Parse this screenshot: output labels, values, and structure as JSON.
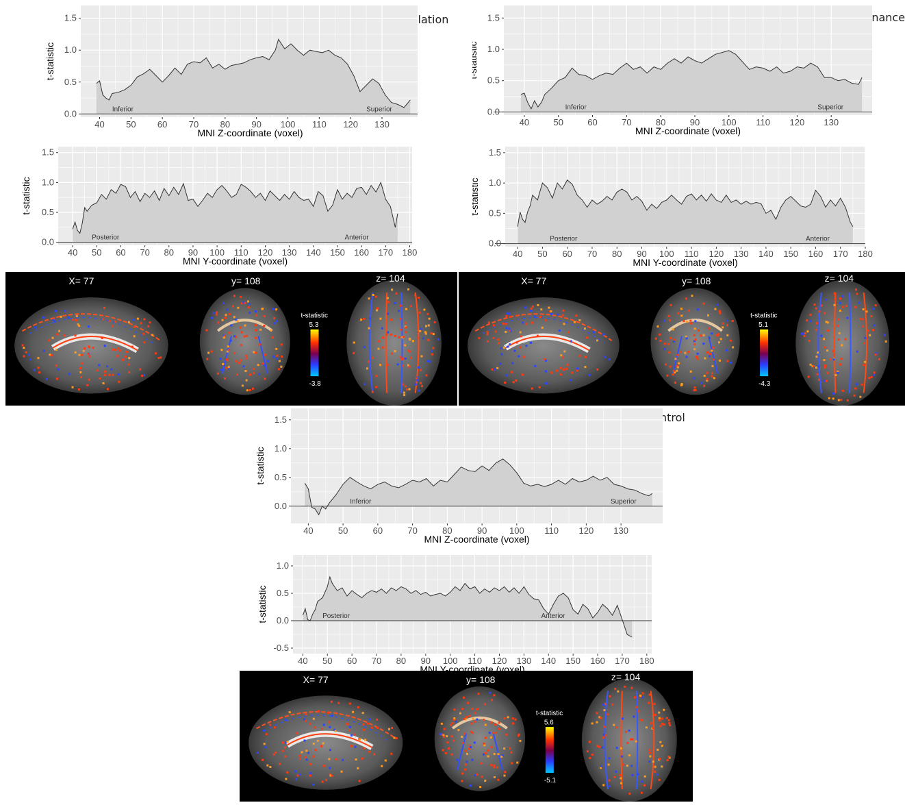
{
  "sections": [
    {
      "title": "Manipulation"
    },
    {
      "title": "Maintenance"
    },
    {
      "title": "Control"
    }
  ],
  "chart_data": [
    {
      "type": "area",
      "section": "Manipulation",
      "ylabel": "t-statistic",
      "xlabel": "MNI Z-coordinate (voxel)",
      "xlim": [
        34,
        142
      ],
      "ylim": [
        -0.05,
        1.7
      ],
      "xticks": [
        40,
        50,
        60,
        70,
        80,
        90,
        100,
        110,
        120,
        130
      ],
      "yticks": [
        0.0,
        0.5,
        1.0,
        1.5
      ],
      "yticklabels": [
        "0.0",
        "0.5",
        "1.0",
        "1.5"
      ],
      "annotations": [
        {
          "text": "Inferior",
          "x": 44
        },
        {
          "text": "Superior",
          "x": 125
        }
      ],
      "x": [
        39,
        40,
        41,
        42,
        43,
        44,
        45,
        46,
        48,
        50,
        52,
        54,
        56,
        58,
        60,
        62,
        64,
        66,
        68,
        70,
        72,
        74,
        76,
        78,
        80,
        82,
        84,
        86,
        88,
        90,
        92,
        94,
        96,
        97,
        99,
        101,
        103,
        105,
        107,
        109,
        111,
        113,
        115,
        117,
        119,
        121,
        123,
        125,
        127,
        129,
        131,
        133,
        135,
        137,
        139
      ],
      "y": [
        0.48,
        0.52,
        0.3,
        0.25,
        0.22,
        0.32,
        0.33,
        0.34,
        0.38,
        0.45,
        0.58,
        0.63,
        0.7,
        0.6,
        0.5,
        0.6,
        0.72,
        0.62,
        0.78,
        0.82,
        0.8,
        0.88,
        0.72,
        0.78,
        0.7,
        0.76,
        0.78,
        0.8,
        0.85,
        0.88,
        0.9,
        0.85,
        1.0,
        1.17,
        1.02,
        1.1,
        1.0,
        0.92,
        1.0,
        0.98,
        0.96,
        1.0,
        0.92,
        0.88,
        0.78,
        0.6,
        0.35,
        0.45,
        0.55,
        0.48,
        0.3,
        0.18,
        0.15,
        0.1,
        0.22
      ]
    },
    {
      "type": "area",
      "section": "Manipulation",
      "ylabel": "t-statistic",
      "xlabel": "MNI Y-coordinate (voxel)",
      "xlim": [
        34,
        181
      ],
      "ylim": [
        -0.05,
        1.6
      ],
      "xticks": [
        40,
        50,
        60,
        70,
        80,
        90,
        100,
        110,
        120,
        130,
        140,
        150,
        160,
        170,
        180
      ],
      "yticks": [
        0.0,
        0.5,
        1.0,
        1.5
      ],
      "yticklabels": [
        "0.0",
        "0.5",
        "1.0",
        "1.5"
      ],
      "annotations": [
        {
          "text": "Posterior",
          "x": 48
        },
        {
          "text": "Anterior",
          "x": 153
        }
      ],
      "x": [
        40,
        41,
        42,
        43,
        44,
        45,
        46,
        48,
        50,
        52,
        54,
        56,
        58,
        60,
        62,
        64,
        66,
        68,
        70,
        72,
        74,
        76,
        78,
        80,
        82,
        84,
        86,
        88,
        90,
        92,
        94,
        96,
        98,
        100,
        102,
        104,
        106,
        108,
        110,
        112,
        114,
        116,
        118,
        120,
        122,
        124,
        126,
        128,
        130,
        132,
        134,
        136,
        138,
        140,
        142,
        144,
        146,
        148,
        150,
        152,
        154,
        156,
        158,
        160,
        162,
        164,
        166,
        168,
        170,
        172,
        174,
        175
      ],
      "y": [
        0.22,
        0.34,
        0.2,
        0.15,
        0.32,
        0.58,
        0.52,
        0.62,
        0.66,
        0.8,
        0.72,
        0.88,
        0.82,
        0.97,
        0.93,
        0.75,
        0.85,
        0.68,
        0.82,
        0.75,
        0.86,
        0.7,
        0.9,
        0.78,
        0.92,
        0.8,
        0.98,
        0.7,
        0.72,
        0.6,
        0.7,
        0.82,
        0.75,
        0.88,
        0.95,
        0.86,
        0.75,
        0.8,
        0.97,
        0.92,
        0.85,
        0.75,
        0.82,
        0.7,
        0.86,
        0.78,
        0.7,
        0.8,
        0.72,
        0.85,
        0.75,
        0.7,
        0.72,
        0.6,
        0.85,
        0.78,
        0.52,
        0.62,
        0.88,
        0.72,
        0.82,
        0.75,
        0.9,
        0.92,
        0.8,
        0.95,
        0.84,
        1.0,
        0.72,
        0.6,
        0.25,
        0.48
      ]
    },
    {
      "type": "area",
      "section": "Maintenance",
      "ylabel": "t-statistic",
      "xlabel": "MNI Z-coordinate (voxel)",
      "xlim": [
        34,
        142
      ],
      "ylim": [
        -0.05,
        1.7
      ],
      "xticks": [
        40,
        50,
        60,
        70,
        80,
        90,
        100,
        110,
        120,
        130
      ],
      "yticks": [
        0.0,
        0.5,
        1.0,
        1.5
      ],
      "yticklabels": [
        "0.0",
        "0.5",
        "1.0",
        "1.5"
      ],
      "annotations": [
        {
          "text": "Inferior",
          "x": 52
        },
        {
          "text": "Superior",
          "x": 126
        }
      ],
      "x": [
        39,
        40,
        41,
        42,
        43,
        44,
        45,
        46,
        48,
        50,
        52,
        54,
        56,
        58,
        60,
        62,
        64,
        66,
        68,
        70,
        72,
        74,
        76,
        78,
        80,
        82,
        84,
        86,
        88,
        90,
        92,
        94,
        96,
        98,
        100,
        102,
        104,
        106,
        108,
        110,
        112,
        114,
        116,
        118,
        120,
        122,
        124,
        126,
        128,
        130,
        132,
        134,
        136,
        138,
        139
      ],
      "y": [
        0.28,
        0.3,
        0.15,
        0.05,
        0.18,
        0.08,
        0.15,
        0.28,
        0.38,
        0.5,
        0.55,
        0.7,
        0.6,
        0.58,
        0.52,
        0.58,
        0.62,
        0.6,
        0.7,
        0.78,
        0.68,
        0.72,
        0.62,
        0.72,
        0.68,
        0.78,
        0.85,
        0.78,
        0.88,
        0.82,
        0.78,
        0.85,
        0.92,
        0.95,
        0.98,
        0.92,
        0.8,
        0.68,
        0.72,
        0.7,
        0.65,
        0.72,
        0.62,
        0.65,
        0.72,
        0.7,
        0.78,
        0.72,
        0.55,
        0.55,
        0.5,
        0.52,
        0.46,
        0.44,
        0.55
      ]
    },
    {
      "type": "area",
      "section": "Maintenance",
      "ylabel": "t-statistic",
      "xlabel": "MNI Y-coordinate (voxel)",
      "xlim": [
        35,
        180
      ],
      "ylim": [
        -0.05,
        1.6
      ],
      "xticks": [
        40,
        50,
        60,
        70,
        80,
        90,
        100,
        110,
        120,
        130,
        140,
        150,
        160,
        170,
        180
      ],
      "yticks": [
        0.0,
        0.5,
        1.0,
        1.5
      ],
      "yticklabels": [
        "0.0",
        "0.5",
        "1.0",
        "1.5"
      ],
      "annotations": [
        {
          "text": "Posterior",
          "x": 53
        },
        {
          "text": "Anterior",
          "x": 156
        }
      ],
      "x": [
        40,
        41,
        42,
        43,
        44,
        45,
        46,
        48,
        50,
        52,
        54,
        56,
        58,
        60,
        62,
        64,
        66,
        68,
        70,
        72,
        74,
        76,
        78,
        80,
        82,
        84,
        86,
        88,
        90,
        92,
        94,
        96,
        98,
        100,
        102,
        104,
        106,
        108,
        110,
        112,
        114,
        116,
        118,
        120,
        122,
        124,
        126,
        128,
        130,
        132,
        134,
        136,
        138,
        140,
        142,
        144,
        146,
        148,
        150,
        152,
        154,
        156,
        158,
        160,
        162,
        164,
        166,
        168,
        170,
        172,
        174,
        175
      ],
      "y": [
        0.28,
        0.52,
        0.4,
        0.35,
        0.52,
        0.62,
        0.8,
        0.72,
        1.0,
        0.92,
        0.75,
        1.0,
        0.9,
        1.05,
        0.98,
        0.8,
        0.72,
        0.6,
        0.72,
        0.65,
        0.7,
        0.78,
        0.72,
        0.85,
        0.9,
        0.85,
        0.72,
        0.78,
        0.7,
        0.55,
        0.65,
        0.58,
        0.68,
        0.72,
        0.8,
        0.72,
        0.65,
        0.78,
        0.82,
        0.72,
        0.8,
        0.7,
        0.82,
        0.72,
        0.68,
        0.8,
        0.68,
        0.72,
        0.65,
        0.7,
        0.65,
        0.68,
        0.66,
        0.5,
        0.55,
        0.4,
        0.6,
        0.72,
        0.78,
        0.7,
        0.62,
        0.6,
        0.65,
        0.88,
        0.78,
        0.6,
        0.72,
        0.62,
        0.75,
        0.6,
        0.35,
        0.28
      ]
    },
    {
      "type": "area",
      "section": "Control",
      "ylabel": "t-statistic",
      "xlabel": "MNI Z-coordinate (voxel)",
      "xlim": [
        35,
        142
      ],
      "ylim": [
        -0.3,
        1.7
      ],
      "xticks": [
        40,
        50,
        60,
        70,
        80,
        90,
        100,
        110,
        120,
        130
      ],
      "yticks": [
        0.0,
        0.5,
        1.0,
        1.5
      ],
      "yticklabels": [
        "0.0",
        "0.5",
        "1.0",
        "1.5"
      ],
      "annotations": [
        {
          "text": "Inferior",
          "x": 52
        },
        {
          "text": "Superior",
          "x": 127
        }
      ],
      "x": [
        39,
        40,
        41,
        42,
        43,
        44,
        45,
        46,
        48,
        50,
        52,
        54,
        56,
        58,
        60,
        62,
        64,
        66,
        68,
        70,
        72,
        74,
        76,
        78,
        80,
        82,
        84,
        86,
        88,
        90,
        92,
        94,
        96,
        98,
        100,
        102,
        104,
        106,
        108,
        110,
        112,
        114,
        116,
        118,
        120,
        122,
        124,
        126,
        128,
        130,
        132,
        134,
        136,
        138,
        139
      ],
      "y": [
        0.4,
        0.3,
        -0.02,
        -0.05,
        -0.15,
        0.0,
        -0.05,
        0.05,
        0.2,
        0.38,
        0.5,
        0.42,
        0.35,
        0.3,
        0.38,
        0.42,
        0.35,
        0.32,
        0.38,
        0.45,
        0.42,
        0.48,
        0.35,
        0.45,
        0.42,
        0.55,
        0.68,
        0.62,
        0.6,
        0.7,
        0.62,
        0.75,
        0.82,
        0.72,
        0.58,
        0.4,
        0.35,
        0.38,
        0.34,
        0.38,
        0.45,
        0.38,
        0.48,
        0.42,
        0.45,
        0.52,
        0.45,
        0.5,
        0.38,
        0.35,
        0.3,
        0.28,
        0.22,
        0.18,
        0.22
      ]
    },
    {
      "type": "area",
      "section": "Control",
      "ylabel": "t-statistic",
      "xlabel": "MNI Y-coordinate (voxel)",
      "xlim": [
        36,
        182
      ],
      "ylim": [
        -0.6,
        1.2
      ],
      "xticks": [
        40,
        50,
        60,
        70,
        80,
        90,
        100,
        110,
        120,
        130,
        140,
        150,
        160,
        170,
        180
      ],
      "yticks": [
        -0.5,
        0.0,
        0.5,
        1.0
      ],
      "yticklabels": [
        "-0.5",
        "0.0",
        "0.5",
        "1.0"
      ],
      "annotations": [
        {
          "text": "Posterior",
          "x": 48
        },
        {
          "text": "Anterior",
          "x": 137
        }
      ],
      "x": [
        40,
        41,
        42,
        43,
        44,
        45,
        46,
        48,
        50,
        51,
        52,
        54,
        56,
        58,
        60,
        62,
        64,
        66,
        68,
        70,
        72,
        74,
        76,
        78,
        80,
        82,
        84,
        86,
        88,
        90,
        92,
        94,
        96,
        98,
        100,
        102,
        104,
        106,
        108,
        110,
        112,
        114,
        116,
        118,
        120,
        122,
        124,
        126,
        128,
        130,
        132,
        134,
        136,
        138,
        140,
        142,
        144,
        146,
        148,
        150,
        152,
        154,
        156,
        158,
        160,
        162,
        164,
        166,
        168,
        170,
        172,
        174
      ],
      "y": [
        0.1,
        0.22,
        0.02,
        0.0,
        0.12,
        0.2,
        0.35,
        0.42,
        0.62,
        0.8,
        0.68,
        0.55,
        0.6,
        0.45,
        0.55,
        0.48,
        0.42,
        0.5,
        0.55,
        0.52,
        0.58,
        0.5,
        0.6,
        0.55,
        0.62,
        0.58,
        0.5,
        0.55,
        0.48,
        0.52,
        0.45,
        0.48,
        0.5,
        0.45,
        0.52,
        0.62,
        0.55,
        0.68,
        0.58,
        0.62,
        0.5,
        0.58,
        0.52,
        0.6,
        0.55,
        0.62,
        0.52,
        0.6,
        0.5,
        0.62,
        0.48,
        0.4,
        0.38,
        0.22,
        0.12,
        0.3,
        0.45,
        0.5,
        0.42,
        0.2,
        0.12,
        0.3,
        0.22,
        0.05,
        0.15,
        0.3,
        0.22,
        0.1,
        0.28,
        0.02,
        -0.25,
        -0.3
      ]
    }
  ],
  "brain_panels": [
    {
      "label_x": "X= 77",
      "label_y": "y= 108",
      "label_z": "z= 104",
      "scale_title": "t-statistic",
      "scale_max": "5.3",
      "scale_min": "-3.8"
    },
    {
      "label_x": "X= 77",
      "label_y": "y= 108",
      "label_z": "z= 104",
      "scale_title": "t-statistic",
      "scale_max": "5.1",
      "scale_min": "-4.3"
    },
    {
      "label_x": "X= 77",
      "label_y": "y= 108",
      "label_z": "z= 104",
      "scale_title": "t-statistic",
      "scale_max": "5.6",
      "scale_min": "-5.1"
    }
  ],
  "colors": {
    "panel_bg": "#ebebeb",
    "grid": "#ffffff",
    "area": "#d1d1d1",
    "line": "#333333",
    "brain_bg": "#000000"
  }
}
